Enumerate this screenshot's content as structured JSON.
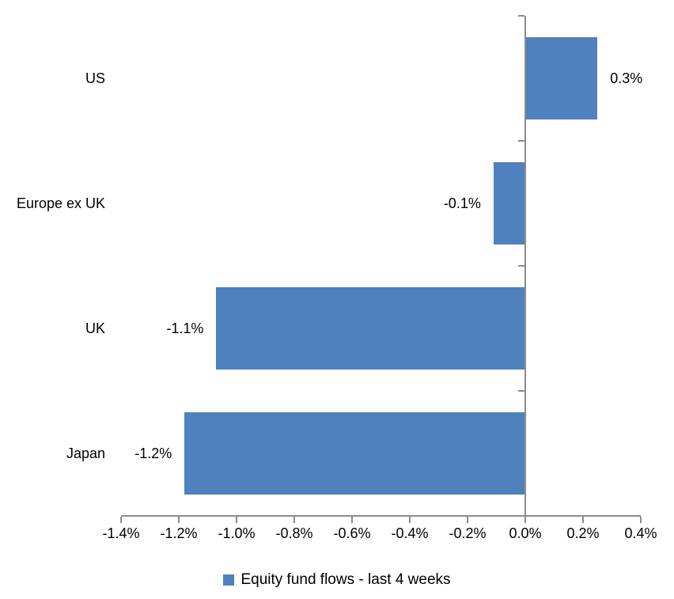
{
  "colors": {
    "bar": "#4E81BD",
    "axis": "#8C8C8C",
    "text": "#000000",
    "background": "#FFFFFF"
  },
  "legend": {
    "label": "Equity fund flows - last 4 weeks",
    "marker": "square-icon",
    "position": "bottom"
  },
  "chart_data": {
    "type": "bar",
    "orientation": "horizontal",
    "title": "",
    "xlabel": "",
    "ylabel": "",
    "categories": [
      "US",
      "Europe ex UK",
      "UK",
      "Japan"
    ],
    "values": [
      0.3,
      -0.1,
      -1.1,
      -1.2
    ],
    "values_precise_pct": [
      0.25,
      -0.11,
      -1.07,
      -1.18
    ],
    "data_labels": [
      "0.3%",
      "-0.1%",
      "-1.1%",
      "-1.2%"
    ],
    "series": [
      {
        "name": "Equity fund flows - last 4 weeks",
        "values": [
          0.3,
          -0.1,
          -1.1,
          -1.2
        ]
      }
    ],
    "x_tick_labels": [
      "-1.4%",
      "-1.2%",
      "-1.0%",
      "-0.8%",
      "-0.6%",
      "-0.4%",
      "-0.2%",
      "0.0%",
      "0.2%",
      "0.4%"
    ],
    "x_tick_values": [
      -1.4,
      -1.2,
      -1.0,
      -0.8,
      -0.6,
      -0.4,
      -0.2,
      0.0,
      0.2,
      0.4
    ],
    "xlim": [
      -1.4,
      0.4
    ],
    "grid": false,
    "legend_position": "bottom"
  }
}
